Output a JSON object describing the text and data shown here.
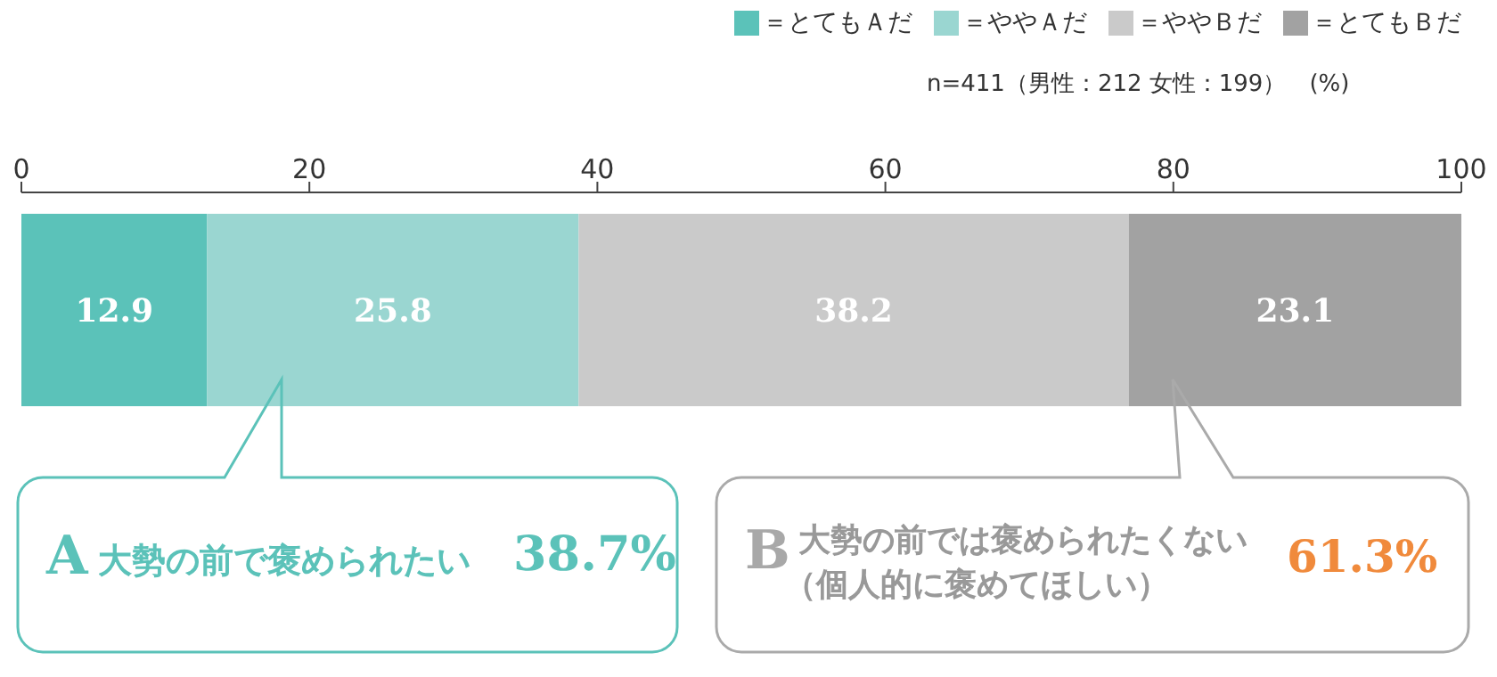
{
  "chart_data": {
    "type": "bar",
    "orientation": "horizontal",
    "stacked": true,
    "categories": [
      null
    ],
    "series": [
      {
        "name": "＝とてもＡだ",
        "color": "#5bc2b9",
        "values": [
          12.9
        ]
      },
      {
        "name": "＝ややＡだ",
        "color": "#9ad6d1",
        "values": [
          25.8
        ]
      },
      {
        "name": "＝ややＢだ",
        "color": "#cacaca",
        "values": [
          38.2
        ]
      },
      {
        "name": "＝とてもＢだ",
        "color": "#a2a2a2",
        "values": [
          23.1
        ]
      }
    ],
    "xlim": [
      0,
      100
    ],
    "xticks": [
      0,
      20,
      40,
      60,
      80,
      100
    ],
    "data_labels": true,
    "legend": "top right",
    "grid": false,
    "annotations": [
      "n=411（男性：212 女性：199）　(%)",
      "A",
      "大勢の前で褒められたい",
      "38.7%",
      "B",
      "大勢の前では褒められたくない",
      "（個人的に褒めてほしい）",
      "61.3%"
    ]
  }
}
